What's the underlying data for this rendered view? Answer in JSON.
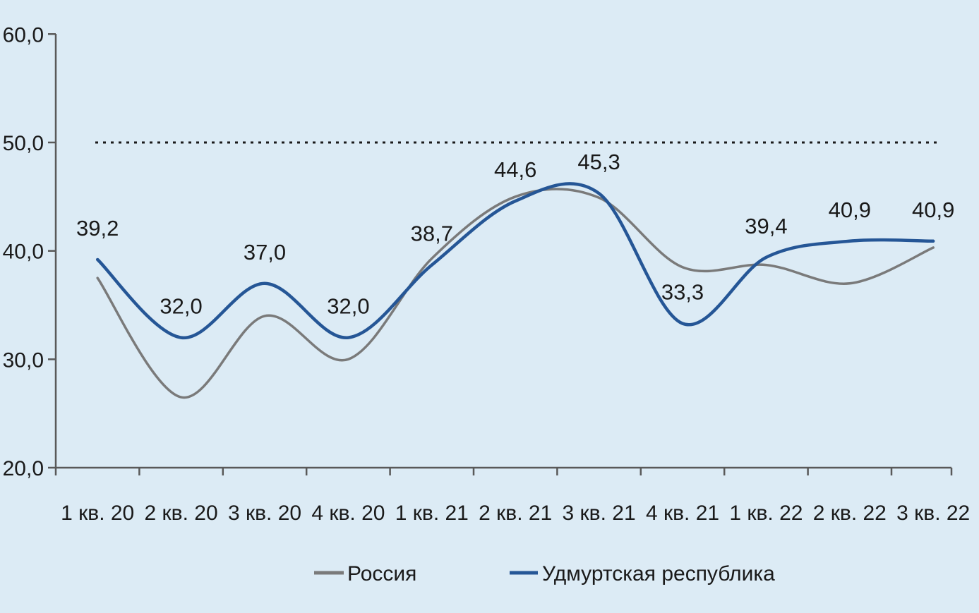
{
  "chart_data": {
    "type": "line",
    "title": "",
    "xlabel": "",
    "ylabel": "",
    "categories": [
      "1 кв. 20",
      "2 кв. 20",
      "3 кв. 20",
      "4 кв. 20",
      "1 кв. 21",
      "2 кв. 21",
      "3 кв. 21",
      "4 кв. 21",
      "1 кв. 22",
      "2 кв. 22",
      "3 кв. 22"
    ],
    "series": [
      {
        "name": "Россия",
        "color": "#7a7a7a",
        "line_width": 3.5,
        "labeled": false,
        "values": [
          37.5,
          26.5,
          34.0,
          30.0,
          39.3,
          45.0,
          44.9,
          38.5,
          38.7,
          37.0,
          40.3
        ]
      },
      {
        "name": "Удмуртская республика",
        "color": "#255696",
        "line_width": 4.5,
        "labeled": true,
        "values": [
          39.2,
          32.0,
          37.0,
          32.0,
          38.7,
          44.6,
          45.3,
          33.3,
          39.4,
          40.9,
          40.9
        ]
      }
    ],
    "data_labels": [
      "39,2",
      "32,0",
      "37,0",
      "32,0",
      "38,7",
      "44,6",
      "45,3",
      "33,3",
      "39,4",
      "40,9",
      "40,9"
    ],
    "reference_line": {
      "value": 50.0,
      "style": "dotted",
      "color": "#1a1a1a"
    },
    "ylim": [
      20.0,
      60.0
    ],
    "ytick_step": 10.0,
    "ytick_labels": [
      "20,0",
      "30,0",
      "40,0",
      "50,0",
      "60,0"
    ],
    "decimal_separator": ",",
    "grid": false,
    "smooth": true,
    "legend_position": "bottom",
    "background_color": "#dcebf5",
    "axis_color": "#595959",
    "text_color": "#1a1a1a"
  }
}
